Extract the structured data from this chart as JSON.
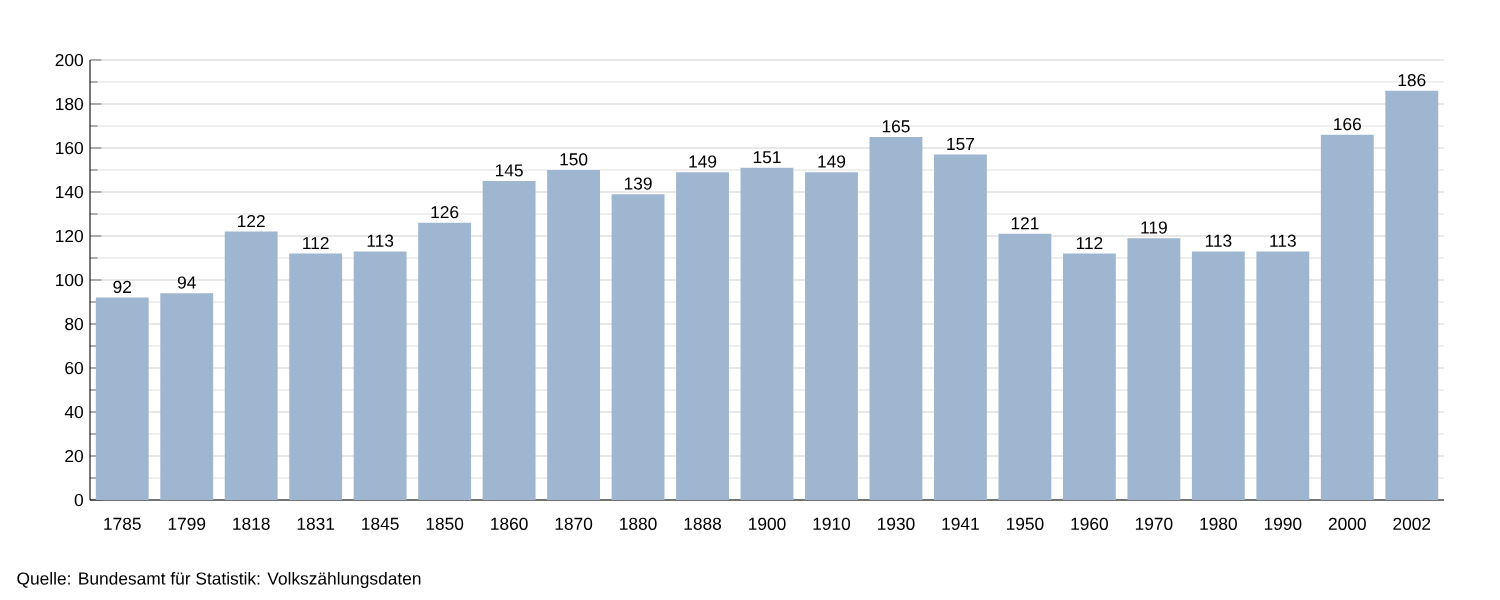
{
  "chart_data": {
    "type": "bar",
    "categories": [
      "1785",
      "1799",
      "1818",
      "1831",
      "1845",
      "1850",
      "1860",
      "1870",
      "1880",
      "1888",
      "1900",
      "1910",
      "1930",
      "1941",
      "1950",
      "1960",
      "1970",
      "1980",
      "1990",
      "2000",
      "2002"
    ],
    "values": [
      92,
      94,
      122,
      112,
      113,
      126,
      145,
      150,
      139,
      149,
      151,
      149,
      165,
      157,
      121,
      112,
      119,
      113,
      113,
      166,
      186
    ],
    "color": "#9fb6d0",
    "ylim": [
      0,
      200
    ],
    "yticks": [
      0,
      20,
      40,
      60,
      80,
      100,
      120,
      140,
      160,
      180,
      200
    ],
    "grid": "y",
    "data_labels": true,
    "annotations": [
      "Quelle: Bundesamt für Statistik: Volkszählungsdaten"
    ]
  }
}
